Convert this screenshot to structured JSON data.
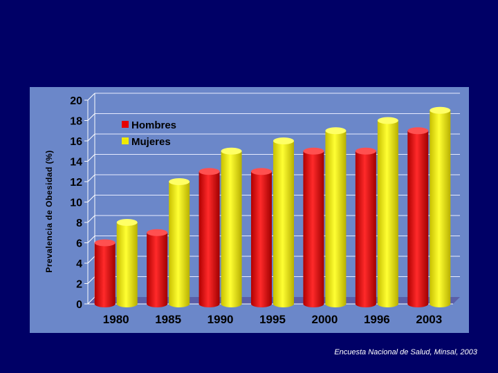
{
  "chart_data": {
    "type": "bar",
    "title": "",
    "xlabel": "",
    "ylabel": "Prevalencia de Obesidad (%)",
    "ylim": [
      0,
      20
    ],
    "yticks": [
      0,
      2,
      4,
      6,
      8,
      10,
      12,
      14,
      16,
      18,
      20
    ],
    "categories": [
      "1980",
      "1985",
      "1990",
      "1995",
      "2000",
      "1996",
      "2003"
    ],
    "series": [
      {
        "name": "Hombres",
        "color": "#e60000",
        "values": [
          6,
          7,
          13,
          13,
          15,
          15,
          17
        ]
      },
      {
        "name": "Mujeres",
        "color": "#f0ea00",
        "values": [
          8,
          12,
          15,
          16,
          17,
          18,
          19
        ]
      }
    ],
    "grid": true,
    "legend_position": "top-left"
  },
  "source_note": "Encuesta Nacional de Salud, Minsal, 2003"
}
